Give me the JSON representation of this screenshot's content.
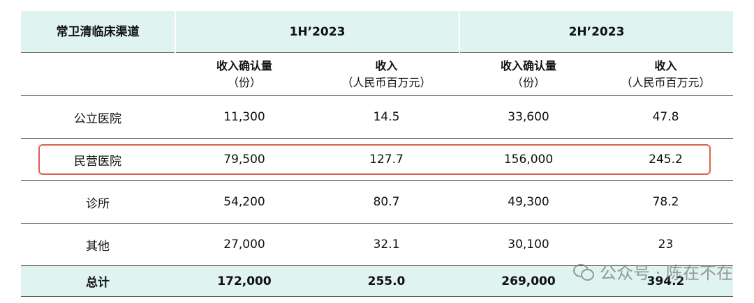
{
  "header": {
    "channel_label": "常卫清临床渠道",
    "period_1": "1H’2023",
    "period_2": "2H’2023"
  },
  "subheader": {
    "col1_main": "收入确认量",
    "col1_unit": "（份）",
    "col2_main": "收入",
    "col2_unit": "（人民币百万元）",
    "col3_main": "收入确认量",
    "col3_unit": "（份）",
    "col4_main": "收入",
    "col4_unit": "（人民币百万元）"
  },
  "rows": [
    {
      "name": "公立医院",
      "h1_volume": "11,300",
      "h1_revenue": "14.5",
      "h2_volume": "33,600",
      "h2_revenue": "47.8"
    },
    {
      "name": "民营医院",
      "h1_volume": "79,500",
      "h1_revenue": "127.7",
      "h2_volume": "156,000",
      "h2_revenue": "245.2"
    },
    {
      "name": "诊所",
      "h1_volume": "54,200",
      "h1_revenue": "80.7",
      "h2_volume": "49,300",
      "h2_revenue": "78.2"
    },
    {
      "name": "其他",
      "h1_volume": "27,000",
      "h1_revenue": "32.1",
      "h2_volume": "30,100",
      "h2_revenue": "23"
    }
  ],
  "total": {
    "name": "总计",
    "h1_volume": "172,000",
    "h1_revenue": "255.0",
    "h2_volume": "269,000",
    "h2_revenue": "394.2"
  },
  "watermark": {
    "text": "公众号 · 陈在不在",
    "icon": "wechat-icon"
  },
  "colors": {
    "header_bg": "#dff3f0",
    "highlight_border": "#d9634f"
  }
}
